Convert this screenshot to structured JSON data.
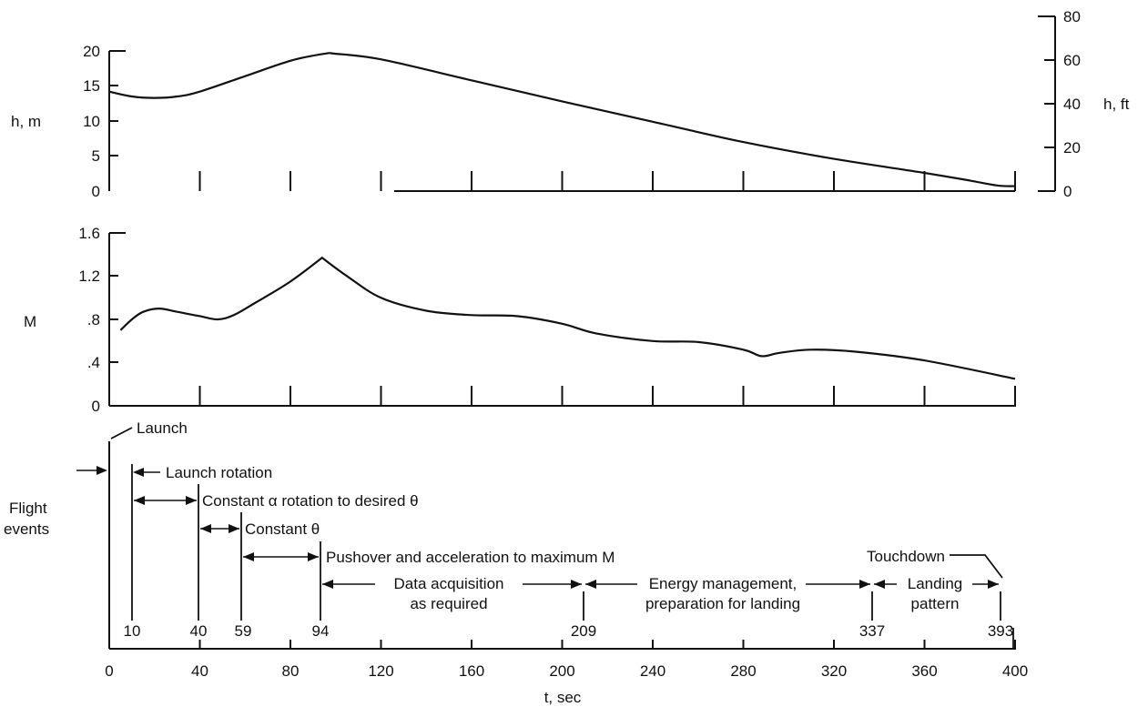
{
  "chart_data": [
    {
      "type": "line",
      "id": "altitude",
      "ylabel": "h, m",
      "ylabel_right": "h, ft",
      "ylim": [
        0,
        20
      ],
      "yticks": [
        "0",
        "5",
        "10",
        "15",
        "20"
      ],
      "ylim_right": [
        0,
        80
      ],
      "yticks_right": [
        "0",
        "20",
        "40",
        "60",
        "80"
      ],
      "xlim": [
        0,
        400
      ],
      "x": [
        0,
        10,
        20,
        30,
        40,
        60,
        80,
        95,
        100,
        120,
        160,
        200,
        240,
        280,
        320,
        360,
        380,
        392,
        400
      ],
      "values": [
        14.2,
        13.5,
        13.3,
        13.5,
        14.2,
        16.4,
        18.6,
        19.6,
        19.6,
        18.8,
        15.8,
        12.8,
        9.9,
        7.0,
        4.6,
        2.6,
        1.5,
        0.8,
        0.7
      ]
    },
    {
      "type": "line",
      "id": "mach",
      "ylabel": "M",
      "ylim": [
        0,
        1.6
      ],
      "yticks": [
        "0",
        ".4",
        ".8",
        "1.2",
        "1.6"
      ],
      "xlim": [
        0,
        400
      ],
      "x": [
        5,
        10,
        15,
        22,
        30,
        40,
        48,
        55,
        65,
        80,
        94,
        105,
        120,
        140,
        160,
        180,
        200,
        215,
        240,
        260,
        280,
        288,
        296,
        310,
        330,
        360,
        400
      ],
      "values": [
        0.7,
        0.8,
        0.87,
        0.9,
        0.87,
        0.83,
        0.8,
        0.84,
        0.96,
        1.15,
        1.37,
        1.2,
        1.0,
        0.88,
        0.84,
        0.83,
        0.76,
        0.67,
        0.6,
        0.59,
        0.52,
        0.46,
        0.49,
        0.52,
        0.5,
        0.42,
        0.25
      ]
    }
  ],
  "x_axis": {
    "label": "t, sec",
    "ticks": [
      "0",
      "40",
      "80",
      "120",
      "160",
      "200",
      "240",
      "280",
      "320",
      "360",
      "400"
    ]
  },
  "events_panel": {
    "label_line1": "Flight",
    "label_line2": "events",
    "events": [
      {
        "t": 0,
        "label": "Launch"
      },
      {
        "t": 10,
        "label": "Launch rotation",
        "tick": "10"
      },
      {
        "t": 40,
        "label": "Constant α rotation to desired θ",
        "tick": "40"
      },
      {
        "t": 59,
        "label": "Constant θ",
        "tick": "59"
      },
      {
        "t": 94,
        "label": "Pushover and acceleration to maximum M",
        "tick": "94"
      },
      {
        "t": 209,
        "label": "Data acquisition as required",
        "tick": "209"
      },
      {
        "t": 337,
        "label": "Energy management, preparation for landing",
        "tick": "337"
      },
      {
        "t": 393,
        "label": "Landing pattern",
        "tick": "393"
      }
    ],
    "touchdown_label": "Touchdown",
    "text": {
      "launch": "Launch",
      "launch_rotation": "Launch rotation",
      "constant_alpha": "Constant α rotation to desired θ",
      "constant_theta": "Constant θ",
      "pushover": "Pushover and acceleration to maximum M",
      "data_acq_1": "Data acquisition",
      "data_acq_2": "as required",
      "energy_1": "Energy management,",
      "energy_2": "preparation for landing",
      "landing_1": "Landing",
      "landing_2": "pattern",
      "touchdown": "Touchdown"
    }
  }
}
